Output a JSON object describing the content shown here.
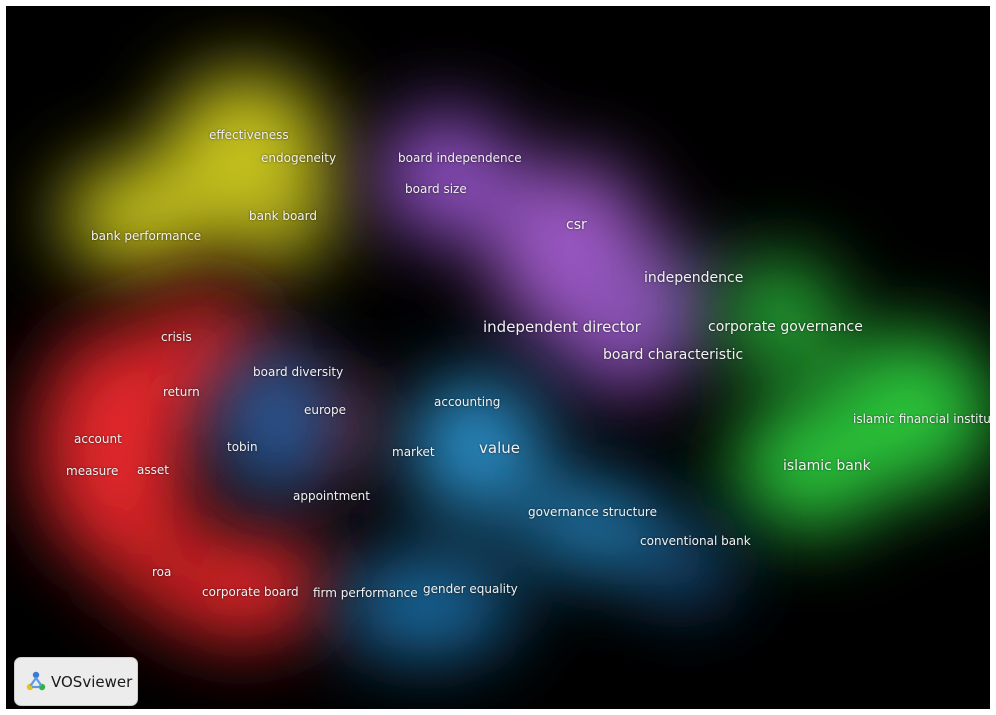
{
  "app": {
    "logo_text": "VOSviewer"
  },
  "colors": {
    "yellow": "#c8c41e",
    "purple": "#9b59c4",
    "green": "#2cc33a",
    "red": "#e2282a",
    "blue": "#2a8ec8",
    "background": "#000000"
  },
  "clusters": [
    {
      "name": "yellow",
      "color": "#c8c41e",
      "terms": [
        "effectiveness",
        "endogeneity",
        "bank board",
        "bank performance"
      ]
    },
    {
      "name": "purple",
      "color": "#9b59c4",
      "terms": [
        "board independence",
        "board size",
        "csr",
        "independence",
        "independent director",
        "board characteristic"
      ]
    },
    {
      "name": "green",
      "color": "#2cc33a",
      "terms": [
        "corporate governance",
        "islamic financial institution",
        "islamic bank"
      ]
    },
    {
      "name": "red",
      "color": "#e2282a",
      "terms": [
        "crisis",
        "return",
        "account",
        "measure",
        "asset",
        "roa",
        "corporate board"
      ]
    },
    {
      "name": "blue",
      "color": "#2a8ec8",
      "terms": [
        "board diversity",
        "europe",
        "tobin",
        "appointment",
        "accounting",
        "market",
        "value",
        "governance structure",
        "conventional bank",
        "firm performance",
        "gender equality"
      ]
    }
  ],
  "terms": {
    "effectiveness": "effectiveness",
    "endogeneity": "endogeneity",
    "bank_board": "bank board",
    "bank_performance": "bank performance",
    "board_independence": "board independence",
    "board_size": "board size",
    "csr": "csr",
    "independence": "independence",
    "independent_director": "independent director",
    "board_characteristic": "board characteristic",
    "corporate_governance": "corporate governance",
    "islamic_financial_institution": "islamic financial institution",
    "islamic_bank": "islamic bank",
    "crisis": "crisis",
    "return": "return",
    "account": "account",
    "measure": "measure",
    "asset": "asset",
    "roa": "roa",
    "corporate_board": "corporate board",
    "board_diversity": "board diversity",
    "europe": "europe",
    "tobin": "tobin",
    "appointment": "appointment",
    "accounting": "accounting",
    "market": "market",
    "value": "value",
    "governance_structure": "governance structure",
    "conventional_bank": "conventional bank",
    "firm_performance": "firm performance",
    "gender_equality": "gender equality"
  }
}
